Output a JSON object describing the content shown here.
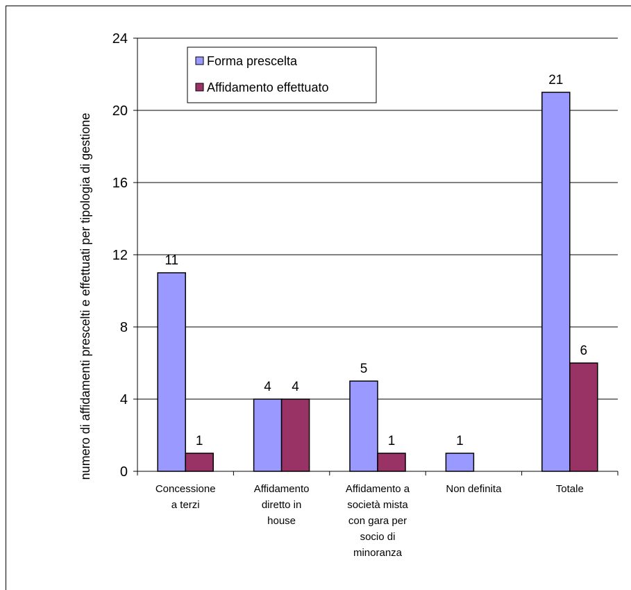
{
  "chart_data": {
    "type": "bar",
    "title": "",
    "xlabel": "",
    "ylabel": "numero di affidamenti prescelti e effettuati per tipologia di gestione",
    "ylim": [
      0,
      24
    ],
    "yticks": [
      "0",
      "4",
      "8",
      "12",
      "16",
      "20",
      "24"
    ],
    "grid": true,
    "legend_position": "top-left",
    "categories": [
      [
        "Concessione",
        "a terzi"
      ],
      [
        "Affidamento",
        "diretto in",
        "house"
      ],
      [
        "Affidamento a",
        "società mista",
        "con gara per",
        "socio di",
        "minoranza"
      ],
      [
        "Non definita"
      ],
      [
        "Totale"
      ]
    ],
    "series": [
      {
        "name": "Forma prescelta",
        "color": "#9999ff",
        "values": [
          11,
          4,
          5,
          1,
          21
        ]
      },
      {
        "name": "Affidamento effettuato",
        "color": "#993366",
        "values": [
          1,
          4,
          1,
          null,
          6
        ]
      }
    ]
  }
}
